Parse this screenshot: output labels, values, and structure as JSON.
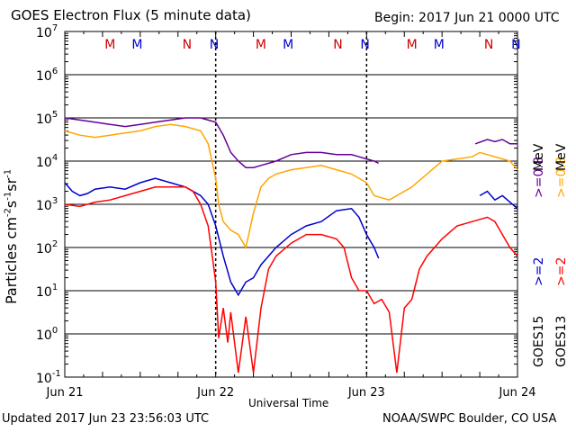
{
  "header": {
    "title": "GOES Electron Flux (5 minute data)",
    "begin": "Begin: 2017 Jun 21 0000 UTC"
  },
  "footer": {
    "updated": "Updated 2017 Jun 23 23:56:03 UTC",
    "credit": "NOAA/SWPC Boulder, CO USA"
  },
  "colors": {
    "goes15_2mev": "#0000cc",
    "goes13_2mev": "#ff0000",
    "goes15_08mev": "#660099",
    "goes13_08mev": "#ffa500",
    "m_marker": "#cc0000",
    "n_marker": "#0000cc"
  },
  "chart_data": {
    "type": "line",
    "title": "GOES Electron Flux (5 minute data)",
    "xlabel": "Universal Time",
    "ylabel": "Particles cm-2s-1sr-1",
    "y_scale": "log",
    "ylim": [
      0.1,
      10000000
    ],
    "y_ticks": [
      {
        "base": "10",
        "exp": "7"
      },
      {
        "base": "10",
        "exp": "6"
      },
      {
        "base": "10",
        "exp": "5"
      },
      {
        "base": "10",
        "exp": "4"
      },
      {
        "base": "10",
        "exp": "3"
      },
      {
        "base": "10",
        "exp": "2"
      },
      {
        "base": "10",
        "exp": "1"
      },
      {
        "base": "10",
        "exp": "0"
      },
      {
        "base": "10",
        "exp": "-1"
      }
    ],
    "x_range_days": [
      0,
      3
    ],
    "x_ticks": [
      "Jun 21",
      "Jun 22",
      "Jun 23",
      "Jun 24"
    ],
    "threshold_line": 1000,
    "grid": true,
    "markers": [
      {
        "label": "M",
        "day": 0.3,
        "color": "m"
      },
      {
        "label": "M",
        "day": 0.48,
        "color": "n"
      },
      {
        "label": "N",
        "day": 0.81,
        "color": "m"
      },
      {
        "label": "N",
        "day": 0.99,
        "color": "n"
      },
      {
        "label": "M",
        "day": 1.3,
        "color": "m"
      },
      {
        "label": "M",
        "day": 1.48,
        "color": "n"
      },
      {
        "label": "N",
        "day": 1.81,
        "color": "m"
      },
      {
        "label": "N",
        "day": 1.99,
        "color": "n"
      },
      {
        "label": "M",
        "day": 2.3,
        "color": "m"
      },
      {
        "label": "M",
        "day": 2.48,
        "color": "n"
      },
      {
        "label": "N",
        "day": 2.81,
        "color": "m"
      },
      {
        "label": "N",
        "day": 2.99,
        "color": "n"
      }
    ],
    "legend": [
      {
        "sat": "GOES15",
        "energy": ">=2",
        "energy2": ">=0.8",
        "unit": "MeV"
      },
      {
        "sat": "GOES13",
        "energy": ">=2",
        "energy2": ">=0.8",
        "unit": "MeV"
      }
    ],
    "series": [
      {
        "name": "GOES15 >=0.8 MeV",
        "color": "#660099",
        "segments": [
          [
            [
              0,
              5.0
            ],
            [
              0.1,
              4.95
            ],
            [
              0.2,
              4.9
            ],
            [
              0.3,
              4.85
            ],
            [
              0.4,
              4.8
            ],
            [
              0.5,
              4.85
            ],
            [
              0.6,
              4.9
            ],
            [
              0.7,
              4.95
            ],
            [
              0.8,
              5.0
            ],
            [
              0.9,
              5.0
            ],
            [
              0.95,
              4.95
            ],
            [
              1.0,
              4.9
            ],
            [
              1.05,
              4.6
            ],
            [
              1.1,
              4.2
            ],
            [
              1.15,
              4.0
            ],
            [
              1.2,
              3.85
            ],
            [
              1.25,
              3.85
            ],
            [
              1.3,
              3.9
            ],
            [
              1.4,
              4.0
            ],
            [
              1.5,
              4.15
            ],
            [
              1.6,
              4.2
            ],
            [
              1.7,
              4.2
            ],
            [
              1.8,
              4.15
            ],
            [
              1.9,
              4.15
            ],
            [
              1.95,
              4.1
            ],
            [
              2.0,
              4.05
            ],
            [
              2.05,
              4.0
            ],
            [
              2.08,
              3.95
            ]
          ],
          [
            [
              2.72,
              4.4
            ],
            [
              2.8,
              4.5
            ],
            [
              2.85,
              4.45
            ],
            [
              2.9,
              4.5
            ],
            [
              2.95,
              4.4
            ],
            [
              3.0,
              4.4
            ]
          ]
        ]
      },
      {
        "name": "GOES13 >=0.8 MeV",
        "color": "#ffa500",
        "segments": [
          [
            [
              0,
              4.7
            ],
            [
              0.1,
              4.6
            ],
            [
              0.2,
              4.55
            ],
            [
              0.3,
              4.6
            ],
            [
              0.4,
              4.65
            ],
            [
              0.5,
              4.7
            ],
            [
              0.6,
              4.8
            ],
            [
              0.7,
              4.85
            ],
            [
              0.8,
              4.8
            ],
            [
              0.9,
              4.7
            ],
            [
              0.95,
              4.4
            ],
            [
              1.0,
              3.6
            ],
            [
              1.02,
              3.0
            ],
            [
              1.05,
              2.6
            ],
            [
              1.1,
              2.4
            ],
            [
              1.15,
              2.3
            ],
            [
              1.2,
              2.0
            ],
            [
              1.25,
              2.8
            ],
            [
              1.3,
              3.4
            ],
            [
              1.35,
              3.6
            ],
            [
              1.4,
              3.7
            ],
            [
              1.5,
              3.8
            ],
            [
              1.6,
              3.85
            ],
            [
              1.7,
              3.9
            ],
            [
              1.8,
              3.8
            ],
            [
              1.9,
              3.7
            ],
            [
              2.0,
              3.5
            ],
            [
              2.05,
              3.2
            ],
            [
              2.1,
              3.15
            ],
            [
              2.15,
              3.1
            ],
            [
              2.2,
              3.2
            ],
            [
              2.3,
              3.4
            ],
            [
              2.4,
              3.7
            ],
            [
              2.5,
              4.0
            ],
            [
              2.6,
              4.05
            ],
            [
              2.7,
              4.1
            ],
            [
              2.75,
              4.2
            ],
            [
              2.8,
              4.15
            ],
            [
              2.9,
              4.05
            ],
            [
              2.95,
              4.0
            ],
            [
              3.0,
              3.8
            ]
          ]
        ]
      },
      {
        "name": "GOES15 >=2 MeV",
        "color": "#0000cc",
        "segments": [
          [
            [
              0,
              3.5
            ],
            [
              0.05,
              3.3
            ],
            [
              0.1,
              3.2
            ],
            [
              0.15,
              3.25
            ],
            [
              0.2,
              3.35
            ],
            [
              0.3,
              3.4
            ],
            [
              0.4,
              3.35
            ],
            [
              0.5,
              3.5
            ],
            [
              0.6,
              3.6
            ],
            [
              0.7,
              3.5
            ],
            [
              0.8,
              3.4
            ],
            [
              0.9,
              3.2
            ],
            [
              0.95,
              3.0
            ],
            [
              1.0,
              2.5
            ],
            [
              1.05,
              1.8
            ],
            [
              1.1,
              1.2
            ],
            [
              1.15,
              0.9
            ],
            [
              1.2,
              1.2
            ],
            [
              1.25,
              1.3
            ],
            [
              1.3,
              1.6
            ],
            [
              1.4,
              2.0
            ],
            [
              1.5,
              2.3
            ],
            [
              1.6,
              2.5
            ],
            [
              1.7,
              2.6
            ],
            [
              1.8,
              2.85
            ],
            [
              1.9,
              2.9
            ],
            [
              1.95,
              2.7
            ],
            [
              2.0,
              2.3
            ],
            [
              2.05,
              2.0
            ],
            [
              2.08,
              1.75
            ]
          ],
          [
            [
              2.75,
              3.2
            ],
            [
              2.8,
              3.3
            ],
            [
              2.85,
              3.1
            ],
            [
              2.9,
              3.2
            ],
            [
              2.95,
              3.05
            ],
            [
              3.0,
              2.9
            ]
          ]
        ]
      },
      {
        "name": "GOES13 >=2 MeV",
        "color": "#ff0000",
        "segments": [
          [
            [
              0,
              3.0
            ],
            [
              0.1,
              2.95
            ],
            [
              0.2,
              3.05
            ],
            [
              0.3,
              3.1
            ],
            [
              0.4,
              3.2
            ],
            [
              0.5,
              3.3
            ],
            [
              0.6,
              3.4
            ],
            [
              0.7,
              3.4
            ],
            [
              0.8,
              3.4
            ],
            [
              0.85,
              3.3
            ],
            [
              0.9,
              3.0
            ],
            [
              0.95,
              2.5
            ],
            [
              1.0,
              1.2
            ],
            [
              1.02,
              -0.1
            ],
            [
              1.05,
              0.6
            ],
            [
              1.08,
              -0.2
            ],
            [
              1.1,
              0.5
            ],
            [
              1.15,
              -0.9
            ],
            [
              1.2,
              0.4
            ],
            [
              1.25,
              -0.9
            ],
            [
              1.3,
              0.6
            ],
            [
              1.35,
              1.5
            ],
            [
              1.4,
              1.8
            ],
            [
              1.5,
              2.1
            ],
            [
              1.6,
              2.3
            ],
            [
              1.7,
              2.3
            ],
            [
              1.8,
              2.2
            ],
            [
              1.85,
              2.0
            ],
            [
              1.9,
              1.3
            ],
            [
              1.95,
              1.0
            ],
            [
              2.0,
              1.0
            ],
            [
              2.05,
              0.7
            ],
            [
              2.1,
              0.8
            ],
            [
              2.15,
              0.5
            ],
            [
              2.2,
              -0.9
            ],
            [
              2.25,
              0.6
            ],
            [
              2.3,
              0.8
            ],
            [
              2.35,
              1.5
            ],
            [
              2.4,
              1.8
            ],
            [
              2.5,
              2.2
            ],
            [
              2.6,
              2.5
            ],
            [
              2.7,
              2.6
            ],
            [
              2.8,
              2.7
            ],
            [
              2.85,
              2.6
            ],
            [
              2.9,
              2.3
            ],
            [
              2.95,
              2.0
            ],
            [
              3.0,
              1.8
            ]
          ]
        ]
      }
    ]
  }
}
